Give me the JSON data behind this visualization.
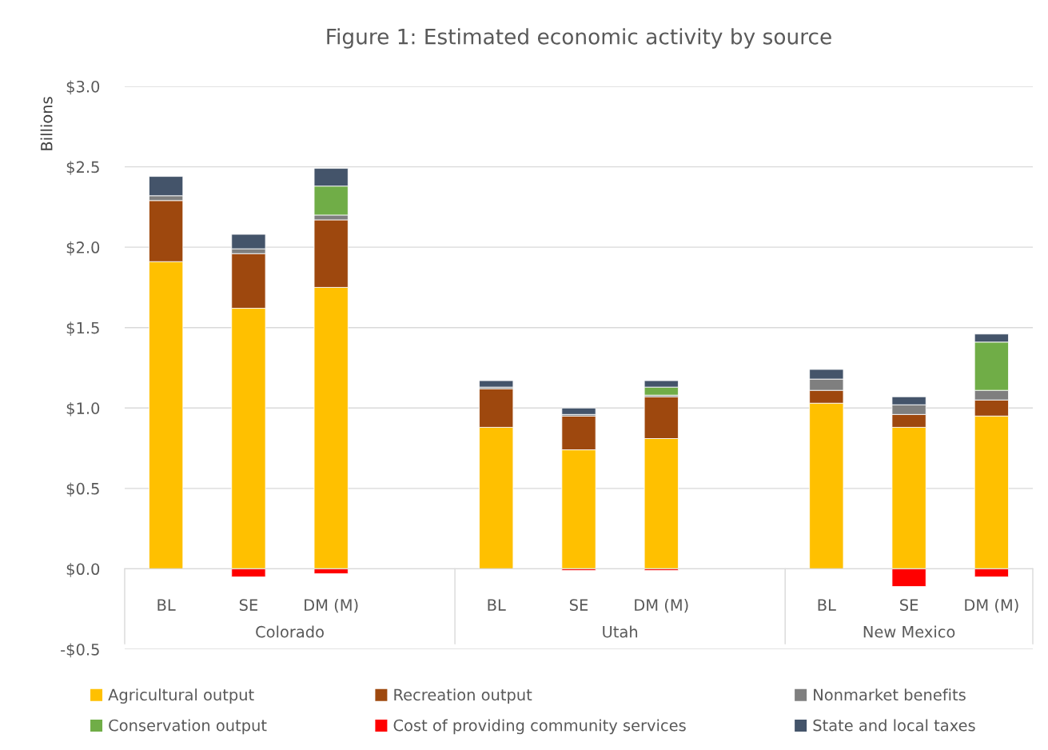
{
  "chart_data": {
    "type": "bar",
    "title": "Figure 1: Estimated economic activity by source",
    "ylabel": "Billions",
    "stacked": true,
    "categories": [
      "BL",
      "SE",
      "DM (M)",
      null,
      "BL",
      "SE",
      "DM (M)",
      null,
      "BL",
      "SE",
      "DM (M)"
    ],
    "annotations": [
      "Colorado",
      "Utah",
      "New Mexico"
    ],
    "series": [
      {
        "name": "Agricultural output",
        "color": "#ffc000",
        "values": [
          1.91,
          1.62,
          1.75,
          null,
          0.88,
          0.74,
          0.81,
          null,
          1.03,
          0.88,
          0.95
        ]
      },
      {
        "name": "Recreation output",
        "color": "#9e480e",
        "values": [
          0.38,
          0.34,
          0.42,
          null,
          0.24,
          0.21,
          0.26,
          null,
          0.08,
          0.08,
          0.1
        ]
      },
      {
        "name": "Nonmarket benefits",
        "color": "#7f7f7f",
        "values": [
          0.03,
          0.03,
          0.03,
          null,
          0.01,
          0.01,
          0.01,
          null,
          0.07,
          0.06,
          0.06
        ]
      },
      {
        "name": "Conservation output",
        "color": "#70ad47",
        "values": [
          null,
          null,
          0.18,
          null,
          null,
          null,
          0.05,
          null,
          null,
          null,
          0.3
        ]
      },
      {
        "name": "Cost of providing community services",
        "color": "#ff0000",
        "values": [
          null,
          -0.05,
          -0.03,
          null,
          null,
          -0.01,
          -0.01,
          null,
          null,
          -0.11,
          -0.05
        ]
      },
      {
        "name": "State and local taxes",
        "color": "#44546a",
        "values": [
          0.12,
          0.09,
          0.11,
          null,
          0.04,
          0.04,
          0.04,
          null,
          0.06,
          0.05,
          0.05
        ]
      }
    ],
    "ylim": [
      -0.5,
      3.0
    ],
    "yticks": [
      {
        "value": -0.5,
        "label": "-$0.5"
      },
      {
        "value": 0,
        "label": "$0.0"
      },
      {
        "value": 0.5,
        "label": "$0.5"
      },
      {
        "value": 1.0,
        "label": "$1.0"
      },
      {
        "value": 1.5,
        "label": "$1.5"
      },
      {
        "value": 2.0,
        "label": "$2.0"
      },
      {
        "value": 2.5,
        "label": "$2.5"
      },
      {
        "value": 3.0,
        "label": "$3.0"
      }
    ],
    "grid": "y",
    "legend": "bottom"
  }
}
